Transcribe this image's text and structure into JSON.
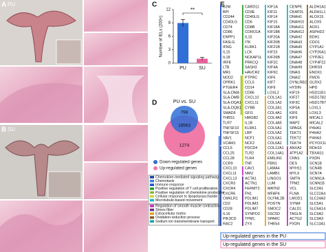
{
  "panel_labels": {
    "a": "A",
    "b": "B",
    "c": "C",
    "d": "D",
    "e": "E"
  },
  "groups": {
    "a": "PU",
    "b": "SU"
  },
  "chart_data": {
    "type": "bar",
    "y_label": "Number of IELs (200×)",
    "categories": [
      "PU",
      "SU"
    ],
    "values": [
      9,
      1
    ],
    "errors": [
      0.8,
      0.3
    ],
    "colors": [
      "#2f6fd6",
      "#e8609a"
    ],
    "ylim": [
      0,
      12
    ],
    "yticks": [
      0,
      3,
      6,
      9,
      12
    ],
    "annotation": "**"
  },
  "venn": {
    "title": "PU vs. SU",
    "counts": [
      "798",
      "18563",
      "1274"
    ],
    "legend": [
      {
        "name": "Down-regulated genes",
        "color": "#2f6fd6"
      },
      {
        "name": "Up-regulated genes",
        "color": "#f07aa8"
      }
    ]
  },
  "genes": [
    [
      "B2M",
      "BPI",
      "CD244",
      "CD40LG",
      "CD74",
      "CD86",
      "ENPP1",
      "FASLG",
      "IFNG",
      "IL15",
      "IL18",
      "IRF8",
      "LTB",
      "MR1",
      "NOD2",
      "OPRK1",
      "PTGER4",
      "SLA-DMA",
      "SLA-DMB",
      "SLA-DQA1",
      "SLA-DQB1",
      "SMAD6",
      "THBS1",
      "TLR7",
      "TNFSF10",
      "TNFSF15",
      "VAV1",
      "VCAM1",
      "CCL5",
      "CCL25",
      "CCL28",
      "CCR9",
      "CXCL10",
      "CXCL11",
      "CXCL13",
      "CXCR3",
      "CXCR4",
      "CXCR6",
      "CMKLR1",
      "CD2",
      "CD28",
      "IL16",
      "PIK3CD",
      "RAC2"
    ],
    [
      "CARD11",
      "CD3E",
      "CD40LG",
      "CD6",
      "CD8B",
      "CORO1A",
      "IL15",
      "ITK",
      "KLRK1",
      "LCK",
      "NCKAP1L",
      "PRKCQ",
      "SASH3",
      "HAVCR2",
      "PTPRC",
      "CCL5",
      "CD14",
      "CD86",
      "CXCL10",
      "CXCL11",
      "CYBB",
      "GFI1",
      "HMGB2",
      "IL1B",
      "KLRK1",
      "LBP",
      "NCF1",
      "NCF2",
      "PDCD4",
      "TLR2",
      "TLR4",
      "TNF",
      "CAV1",
      "NMU",
      "ACTA1",
      "ACTN1",
      "FERMT2",
      "FN1",
      "PDLIM1",
      "PDLIM3",
      "PDLIM7",
      "SYNPO2",
      "TPM1",
      "ZYX"
    ],
    [
      "KIF1A",
      "KIF11",
      "KIF14",
      "KIF15",
      "KIF18A",
      "KIF18B",
      "KIF20A",
      "KIF20B",
      "KIF21B",
      "KIF23",
      "KIF26B",
      "KIF2C",
      "KIF4A",
      "KIF5C",
      "KIF6",
      "KIF7",
      "KIF9",
      "LOXL2",
      "COL1A1",
      "COL1A2",
      "COL3A1",
      "COL4A1",
      "COL4A2",
      "COL4A5",
      "COL5A1",
      "COL5A2",
      "COL6A1",
      "COL6A2",
      "COL12A1",
      "COL14A1",
      "EMILIN1",
      "FBN1",
      "LAMA4",
      "LAMB1",
      "LINGO1",
      "LUM",
      "MATN2",
      "MFAP4",
      "OLFML2B",
      "POSTN",
      "SMOC2",
      "SSC5D",
      "SPARC",
      "THBS4"
    ],
    [
      "CENPE",
      "CKAP2L",
      "DNAH1",
      "DNAH10",
      "DNAH11",
      "DNAH12",
      "DNAH2",
      "DNAH3",
      "DNAH5",
      "DNAH6",
      "DNAH7",
      "DNAH8",
      "DNAH9",
      "DNAI1",
      "DNAI2",
      "DYNLRB2",
      "HYDIN",
      "KIF19",
      "KIF27",
      "KIF3C",
      "KIF5A",
      "KIF6",
      "KIF9",
      "MAP2",
      "SPAG6",
      "TEKT1",
      "TEKT2",
      "TEKT4",
      "ANXA2",
      "ATP1A2",
      "CNN1",
      "DES",
      "MYH11",
      "MYL9",
      "SMTN",
      "TPM2",
      "VCL",
      "FLNA",
      "LMOD1",
      "SYNM",
      "CALD1",
      "TAGLN",
      "ACTG2",
      "PXDN"
    ],
    [
      "ALDH1A1",
      "ALDH1L1",
      "ALOX15",
      "ALOX5",
      "AOX1",
      "ASPHD2",
      "BDH1",
      "CDO1",
      "CYP1A1",
      "CYP26A1",
      "CYP2E1",
      "CYP4F22",
      "DHRS9",
      "ENOX1",
      "FMO5",
      "GLRX2",
      "HPD",
      "HSD11B1",
      "HSD17B2",
      "HSD17B7",
      "LOXL1",
      "LOXL3",
      "MICAL1",
      "MICAL2",
      "P4HA1",
      "P4HA2",
      "P4HA3",
      "PCYOX1L",
      "RDH10",
      "TBXAS1",
      "PXDN",
      "SCN1B",
      "SCN4B",
      "SCN7A",
      "SCNN1A",
      "SCNN1B",
      "SLC2A1",
      "SLC22A4",
      "SLC24A3",
      "SLC5A1",
      "SLC6A14",
      "SLC9A2",
      "SLC9A3",
      "SLC13A1"
    ]
  ],
  "pathways": [
    {
      "name": "Chemokine-mediated signaling pathway",
      "color": "#1f3f99"
    },
    {
      "name": "Chemotaxis",
      "color": "#3a7ad8"
    },
    {
      "name": "Immune response",
      "color": "#2452c8"
    },
    {
      "name": "Positive regulation of T cell proliferation",
      "color": "#2ca02c"
    },
    {
      "name": "Positive regulation of chemokine production",
      "color": "#8db83a"
    },
    {
      "name": "Cellular response to lipopolysaccharide",
      "color": "#c8d63a"
    },
    {
      "name": "Microtubule-based movement",
      "color": "#19b5c8"
    },
    {
      "name": "Regulation of smooth muscle contraction",
      "color": "#c02fc0"
    },
    {
      "name": "Stress fiber",
      "color": "#6a2a8a"
    },
    {
      "name": "Extracellular matrix",
      "color": "#e8a020"
    },
    {
      "name": "Oxidation-reduction process",
      "color": "#8a5a2a"
    },
    {
      "name": "Sodium ion transmembrane transport",
      "color": "#20a0a0"
    }
  ],
  "direction_legend": [
    {
      "name": "Up-regulated genes in the PU",
      "color": "#2f6fd6"
    },
    {
      "name": "Up-regulated genes in the SU",
      "color": "#f07aa8"
    }
  ]
}
